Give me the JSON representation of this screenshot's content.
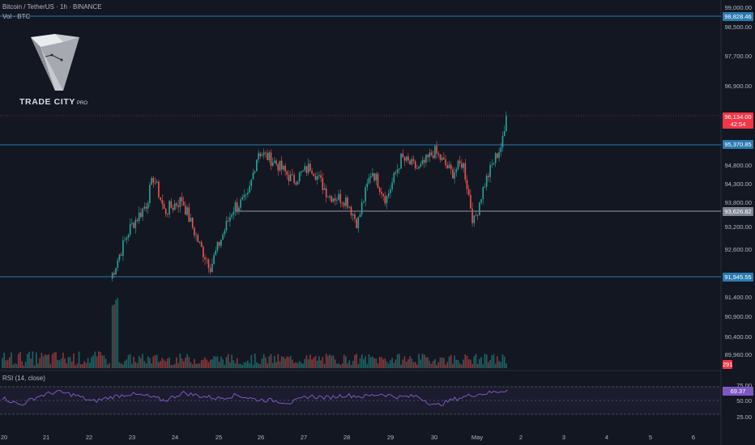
{
  "header": {
    "title": "Bitcoin / TetherUS · 1h · BINANCE",
    "subtitle": "Vol · BTC"
  },
  "watermark": {
    "brand": "TRADE CITY",
    "suffix": "PRO"
  },
  "rsi": {
    "label": "RSI (14, close)",
    "current": "69.37",
    "upper": "75.00",
    "mid": "50.00",
    "lower": "25.00"
  },
  "price_axis_ticks": [
    "99,000.00",
    "98,500.00",
    "97,700.00",
    "96,900.00",
    "94,800.00",
    "94,300.00",
    "93,800.00",
    "93,200.00",
    "92,600.00",
    "91,400.00",
    "90,900.00",
    "90,400.00",
    "89,960.00"
  ],
  "price_tags": {
    "line1": {
      "value": "98,828.46",
      "color": "#2a7ab0"
    },
    "current": {
      "value": "96,134.00",
      "countdown": "42:54",
      "color": "#f23645"
    },
    "line2": {
      "value": "95,370.85",
      "color": "#2a7ab0"
    },
    "line3": {
      "value": "93,626.82",
      "color": "#7e8594"
    },
    "line4": {
      "value": "91,945.55",
      "color": "#2a7ab0"
    },
    "volume": {
      "value": "291",
      "color": "#f23645"
    }
  },
  "date_labels": [
    "20",
    "21",
    "22",
    "23",
    "24",
    "25",
    "26",
    "27",
    "28",
    "29",
    "30",
    "May",
    "2",
    "3",
    "4",
    "5",
    "6"
  ],
  "chart_data": {
    "type": "candlestick",
    "symbol": "BTCUSDT",
    "timeframe": "1h",
    "y_range": [
      89960,
      99000
    ],
    "horizontal_levels": [
      98828.46,
      95370.85,
      93626.82,
      91945.55
    ],
    "current_price": 96134.0,
    "close_path": [
      {
        "x": "Apr 22 12:00",
        "y": 91900
      },
      {
        "x": "Apr 22 23:00",
        "y": 93200
      },
      {
        "x": "Apr 23 08:00",
        "y": 93800
      },
      {
        "x": "Apr 23 12:00",
        "y": 94500
      },
      {
        "x": "Apr 23 18:00",
        "y": 93600
      },
      {
        "x": "Apr 24 04:00",
        "y": 93900
      },
      {
        "x": "Apr 24 14:00",
        "y": 92700
      },
      {
        "x": "Apr 24 20:00",
        "y": 92200
      },
      {
        "x": "Apr 25 08:00",
        "y": 93700
      },
      {
        "x": "Apr 25 16:00",
        "y": 93900
      },
      {
        "x": "Apr 25 22:00",
        "y": 95200
      },
      {
        "x": "Apr 26 08:00",
        "y": 94900
      },
      {
        "x": "Apr 26 18:00",
        "y": 94400
      },
      {
        "x": "Apr 27 04:00",
        "y": 94800
      },
      {
        "x": "Apr 27 14:00",
        "y": 94000
      },
      {
        "x": "Apr 28 00:00",
        "y": 93900
      },
      {
        "x": "Apr 28 06:00",
        "y": 93300
      },
      {
        "x": "Apr 28 14:00",
        "y": 94700
      },
      {
        "x": "Apr 28 22:00",
        "y": 93900
      },
      {
        "x": "Apr 29 06:00",
        "y": 95000
      },
      {
        "x": "Apr 29 16:00",
        "y": 94700
      },
      {
        "x": "Apr 30 00:00",
        "y": 95200
      },
      {
        "x": "Apr 30 10:00",
        "y": 94600
      },
      {
        "x": "Apr 30 16:00",
        "y": 94900
      },
      {
        "x": "Apr 30 22:00",
        "y": 93300
      },
      {
        "x": "May 01 04:00",
        "y": 94300
      },
      {
        "x": "May 01 10:00",
        "y": 95000
      },
      {
        "x": "May 01 14:00",
        "y": 95400
      },
      {
        "x": "May 01 17:00",
        "y": 96134
      }
    ],
    "rsi_path": [
      55,
      42,
      58,
      66,
      60,
      48,
      56,
      62,
      58,
      50,
      64,
      58,
      54,
      60,
      52,
      50,
      46,
      58,
      55,
      60,
      57,
      62,
      56,
      58,
      40,
      52,
      60,
      64,
      69.37
    ],
    "colors": {
      "up": "#26a69a",
      "down": "#ef5350"
    }
  }
}
